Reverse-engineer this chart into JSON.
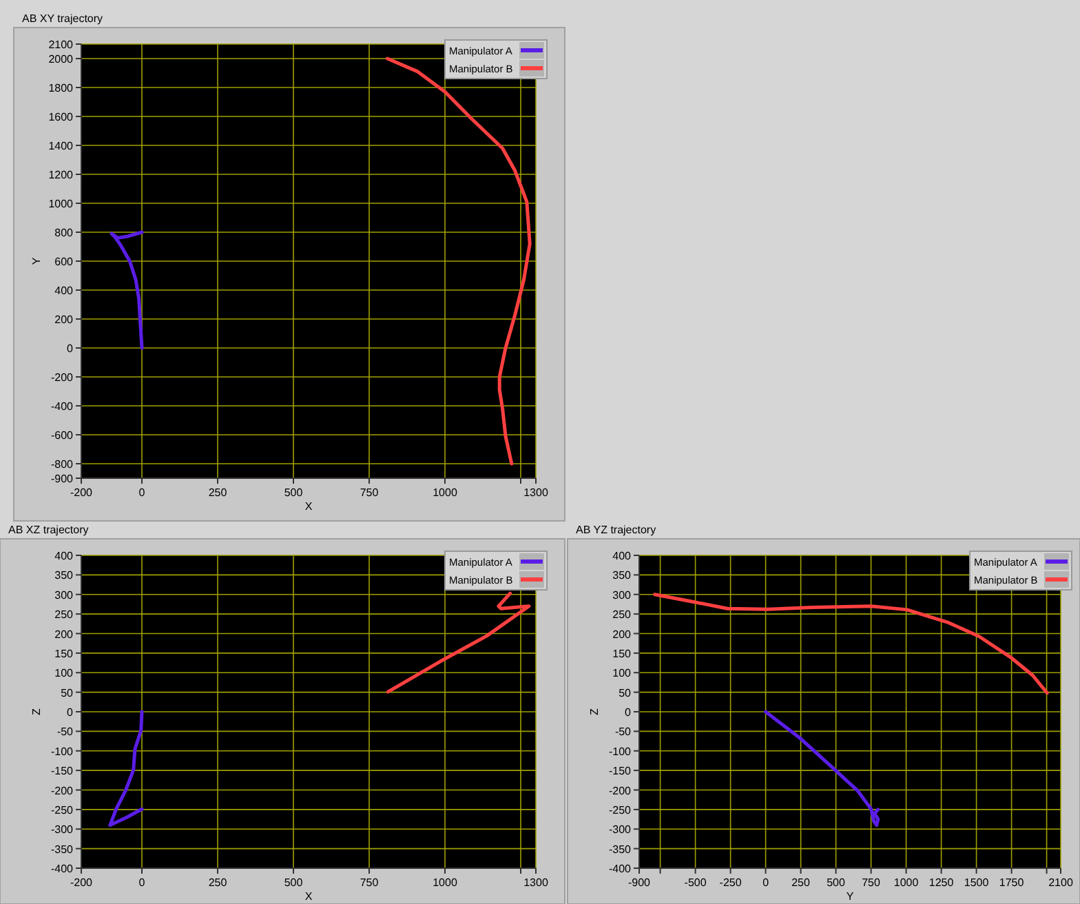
{
  "chart_data": [
    {
      "type": "line",
      "title": "AB XY trajectory",
      "xlabel": "X",
      "ylabel": "Y",
      "xlim": [
        -200,
        1300
      ],
      "xticks": [
        -200,
        0,
        250,
        500,
        750,
        1000,
        {
          "value": 1250,
          "label": null
        },
        1300
      ],
      "ylim": [
        -900,
        2100
      ],
      "yticks": [
        -900,
        -800,
        -600,
        -400,
        -200,
        0,
        200,
        400,
        600,
        800,
        1000,
        1200,
        1400,
        1600,
        1800,
        2000,
        2100
      ],
      "grid": true,
      "legend": "top right",
      "series": [
        {
          "name": "Manipulator A",
          "color": "#5a1ee6",
          "x": [
            0,
            -10,
            -20,
            -40,
            -70,
            -90,
            -100,
            -80,
            -50,
            0
          ],
          "values": [
            0,
            340,
            470,
            600,
            710,
            770,
            790,
            760,
            770,
            800
          ]
        },
        {
          "name": "Manipulator B",
          "color": "#ff4040",
          "x": [
            810,
            910,
            1000,
            1090,
            1190,
            1230,
            1270,
            1280,
            1260,
            1230,
            1200,
            1180,
            1180,
            1190,
            1200,
            1220
          ],
          "values": [
            2000,
            1910,
            1770,
            1580,
            1380,
            1230,
            1010,
            720,
            470,
            220,
            0,
            -200,
            -290,
            -420,
            -610,
            -800
          ]
        }
      ]
    },
    {
      "type": "line",
      "title": "AB XZ trajectory",
      "xlabel": "X",
      "ylabel": "Z",
      "xlim": [
        -200,
        1300
      ],
      "xticks": [
        -200,
        0,
        250,
        500,
        750,
        1000,
        {
          "value": 1250,
          "label": null
        },
        1300
      ],
      "ylim": [
        -400,
        400
      ],
      "yticks": [
        -400,
        -350,
        -300,
        -250,
        -200,
        -150,
        -100,
        -50,
        0,
        50,
        100,
        150,
        200,
        250,
        300,
        350,
        400
      ],
      "grid": true,
      "legend": "top right",
      "series": [
        {
          "name": "Manipulator A",
          "color": "#5a1ee6",
          "x": [
            0,
            -3,
            -23,
            -28,
            -54,
            -85,
            -105,
            -50,
            0
          ],
          "values": [
            0,
            -48,
            -96,
            -149,
            -202,
            -249,
            -290,
            -270,
            -249
          ]
        },
        {
          "name": "Manipulator B",
          "color": "#ff4040",
          "x": [
            812,
            985,
            1138,
            1277,
            1185,
            1177,
            1215
          ],
          "values": [
            51,
            129,
            194,
            270,
            264,
            270,
            303
          ]
        }
      ]
    },
    {
      "type": "line",
      "title": "AB YZ trajectory",
      "xlabel": "Y",
      "ylabel": "Z",
      "xlim": [
        -900,
        2100
      ],
      "xticks": [
        -900,
        {
          "value": -750,
          "label": null
        },
        -500,
        -250,
        0,
        250,
        500,
        750,
        1000,
        1250,
        1500,
        1750,
        {
          "value": 2000,
          "label": null
        },
        2100
      ],
      "ylim": [
        -400,
        400
      ],
      "yticks": [
        -400,
        -350,
        -300,
        -250,
        -200,
        -150,
        -100,
        -50,
        0,
        50,
        100,
        150,
        200,
        250,
        300,
        350,
        400
      ],
      "grid": true,
      "legend": "top right",
      "series": [
        {
          "name": "Manipulator A",
          "color": "#5a1ee6",
          "x": [
            0,
            240,
            495,
            655,
            751,
            770,
            790,
            800,
            775,
            800
          ],
          "values": [
            0,
            -66,
            -149,
            -202,
            -249,
            -280,
            -290,
            -275,
            -260,
            -250
          ]
        },
        {
          "name": "Manipulator B",
          "color": "#ff4040",
          "x": [
            -789,
            -527,
            -272,
            16,
            335,
            751,
            1006,
            1294,
            1518,
            1741,
            1901,
            2003
          ],
          "values": [
            300,
            282,
            264,
            262,
            267,
            270,
            261,
            229,
            193,
            140,
            93,
            48
          ]
        }
      ]
    }
  ]
}
